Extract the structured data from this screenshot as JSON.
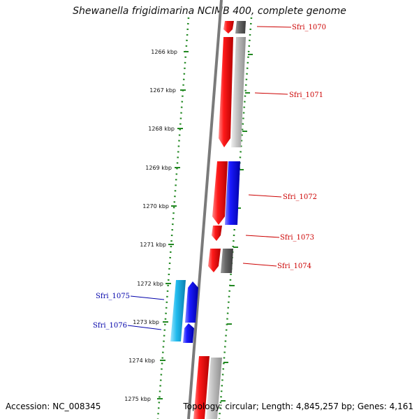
{
  "title": "Shewanella frigidimarina NCIMB 400, complete genome",
  "footer": {
    "accession": "Accession: NC_008345",
    "topology": "Topology: circular; Length: 4,845,257 bp; Genes: 4,161"
  },
  "colors": {
    "forward_gene": "#ee1111",
    "reverse_gene": "#1111ee",
    "cds_gray": "#bbbbbb",
    "highlight_cyan": "#22bbee",
    "tick_green": "#228822",
    "label_red": "#cc0000",
    "label_blue": "#0000aa"
  },
  "scale": {
    "ticks": [
      "1266 kbp",
      "1267 kbp",
      "1268 kbp",
      "1269 kbp",
      "1270 kbp",
      "1271 kbp",
      "1272 kbp",
      "1273 kbp",
      "1274 kbp",
      "1275 kbp"
    ]
  },
  "genes": [
    {
      "name": "Sfri_1070",
      "strand": "forward"
    },
    {
      "name": "Sfri_1071",
      "strand": "forward"
    },
    {
      "name": "Sfri_1072",
      "strand": "forward"
    },
    {
      "name": "Sfri_1073",
      "strand": "forward"
    },
    {
      "name": "Sfri_1074",
      "strand": "forward"
    },
    {
      "name": "Sfri_1075",
      "strand": "reverse"
    },
    {
      "name": "Sfri_1076",
      "strand": "reverse"
    }
  ]
}
